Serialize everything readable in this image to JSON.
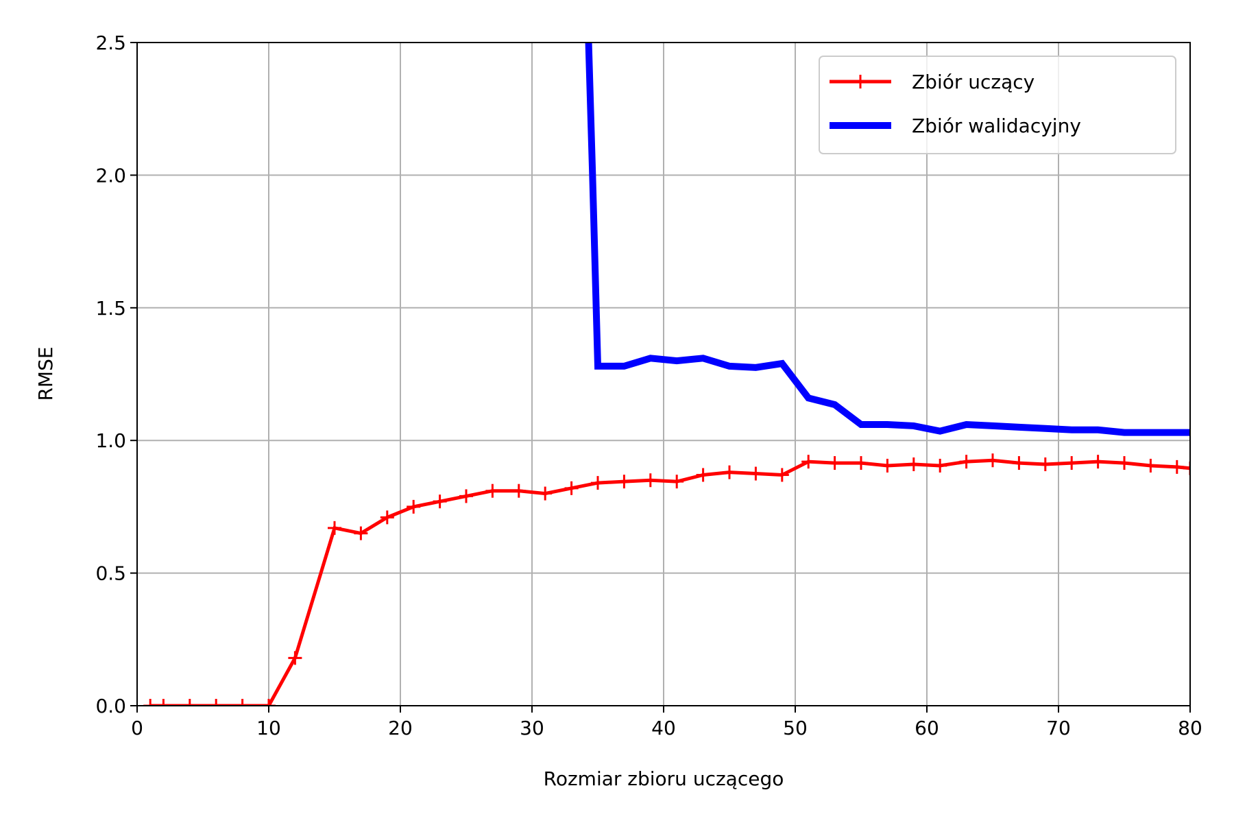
{
  "chart_data": {
    "type": "line",
    "title": "",
    "xlabel": "Rozmiar zbioru uczącego",
    "ylabel": "RMSE",
    "xlim": [
      0,
      80
    ],
    "ylim": [
      0,
      2.5
    ],
    "xticks": [
      0,
      10,
      20,
      30,
      40,
      50,
      60,
      70,
      80
    ],
    "xtick_labels": [
      "0",
      "10",
      "20",
      "30",
      "40",
      "50",
      "60",
      "70",
      "80"
    ],
    "yticks": [
      0,
      0.5,
      1.0,
      1.5,
      2.0,
      2.5
    ],
    "ytick_labels": [
      "0.0",
      "0.5",
      "1.0",
      "1.5",
      "2.0",
      "2.5"
    ],
    "grid": true,
    "legend_position": "top-right",
    "series": [
      {
        "name": "Zbiór uczący",
        "color": "#ff0000",
        "style": "line-plus-markers",
        "x": [
          1,
          2,
          4,
          6,
          8,
          10,
          12,
          15,
          17,
          19,
          21,
          23,
          25,
          27,
          29,
          31,
          33,
          35,
          37,
          39,
          41,
          43,
          45,
          47,
          49,
          51,
          53,
          55,
          57,
          59,
          61,
          63,
          65,
          67,
          69,
          71,
          73,
          75,
          77,
          79,
          80
        ],
        "y": [
          0.0,
          0.0,
          0.0,
          0.0,
          0.0,
          0.0,
          0.18,
          0.67,
          0.65,
          0.71,
          0.75,
          0.77,
          0.79,
          0.81,
          0.81,
          0.8,
          0.82,
          0.84,
          0.845,
          0.85,
          0.845,
          0.87,
          0.88,
          0.875,
          0.87,
          0.92,
          0.915,
          0.915,
          0.905,
          0.91,
          0.905,
          0.92,
          0.925,
          0.915,
          0.91,
          0.915,
          0.92,
          0.915,
          0.905,
          0.9,
          0.895
        ]
      },
      {
        "name": "Zbiór walidacyjny",
        "color": "#0000ff",
        "style": "thick-line",
        "x": [
          34,
          34.3,
          34.6,
          35,
          37,
          39,
          41,
          43,
          45,
          47,
          49,
          51,
          53,
          55,
          57,
          59,
          61,
          63,
          65,
          67,
          69,
          71,
          73,
          75,
          77,
          79,
          80
        ],
        "y": [
          3.5,
          2.5,
          2.0,
          1.28,
          1.28,
          1.31,
          1.3,
          1.31,
          1.28,
          1.275,
          1.29,
          1.16,
          1.135,
          1.06,
          1.06,
          1.055,
          1.035,
          1.06,
          1.055,
          1.05,
          1.045,
          1.04,
          1.04,
          1.03,
          1.03,
          1.03,
          1.03
        ]
      }
    ]
  }
}
